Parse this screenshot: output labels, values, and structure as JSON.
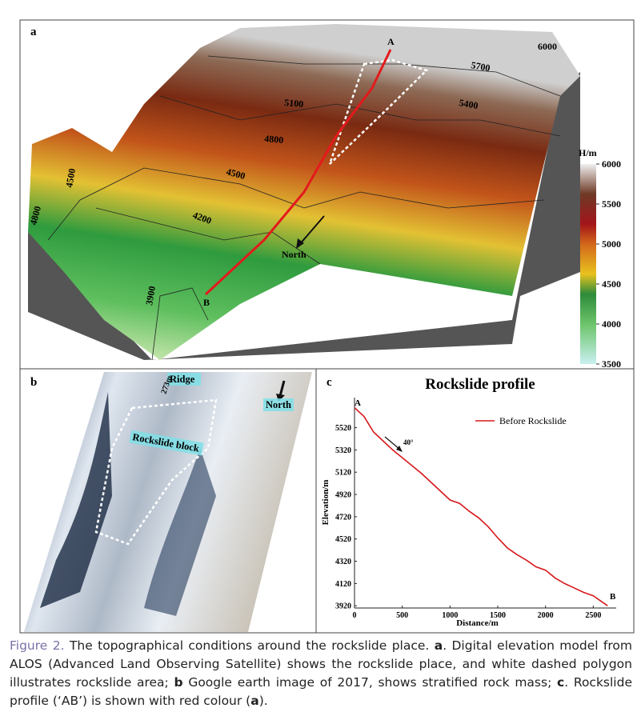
{
  "panel_a": {
    "letter": "a",
    "point_labels": [
      "A",
      "B"
    ],
    "direction_label": "North",
    "contour_labels": [
      "6000",
      "5700",
      "5400",
      "5100",
      "4800",
      "4500",
      "4200",
      "3900",
      "4500",
      "4800"
    ],
    "colorbar": {
      "title": "H/m",
      "ticks": [
        3500,
        4000,
        4500,
        5000,
        5500,
        6000
      ]
    }
  },
  "panel_b": {
    "letter": "b",
    "labels": [
      "Ridge",
      "273m",
      "North",
      "Rockslide block"
    ]
  },
  "panel_c": {
    "letter": "c"
  },
  "chart_data": {
    "type": "line",
    "title": "Rockslide profile",
    "x_label": "Distance/m",
    "y_label": "Elevation/m",
    "x": [
      0,
      100,
      200,
      300,
      400,
      500,
      600,
      700,
      800,
      900,
      1000,
      1100,
      1200,
      1300,
      1400,
      1500,
      1600,
      1700,
      1800,
      1900,
      2000,
      2100,
      2200,
      2300,
      2400,
      2500,
      2600,
      2650
    ],
    "series": [
      {
        "name": "Before Rockslide",
        "color": "#d7191c",
        "values": [
          5700,
          5620,
          5480,
          5400,
          5320,
          5250,
          5180,
          5110,
          5030,
          4950,
          4870,
          4840,
          4770,
          4710,
          4630,
          4530,
          4440,
          4380,
          4330,
          4270,
          4240,
          4170,
          4120,
          4080,
          4040,
          4010,
          3950,
          3920
        ]
      }
    ],
    "annotations": [
      "A",
      "B",
      "40°"
    ],
    "xlim": [
      0,
      2740
    ],
    "ylim": [
      3900,
      5790
    ],
    "xticks": [
      0,
      500,
      1000,
      1500,
      2000,
      2500
    ],
    "yticks": [
      3920,
      4120,
      4320,
      4520,
      4720,
      4920,
      5120,
      5320,
      5520
    ],
    "legend": "upper right"
  },
  "caption": {
    "label": "Figure 2.",
    "runs": [
      " The topographical conditions around the rockslide place. ",
      "a",
      ". Digital elevation model from ALOS (Advanced Land Observing Satellite) shows the rockslide place, and white dashed polygon illustrates rockslide area; ",
      "b",
      " Google earth image of 2017, shows stratified rock mass; ",
      "c",
      ". Rockslide profile (‘AB’) is shown with red colour (",
      "a",
      ")."
    ]
  }
}
